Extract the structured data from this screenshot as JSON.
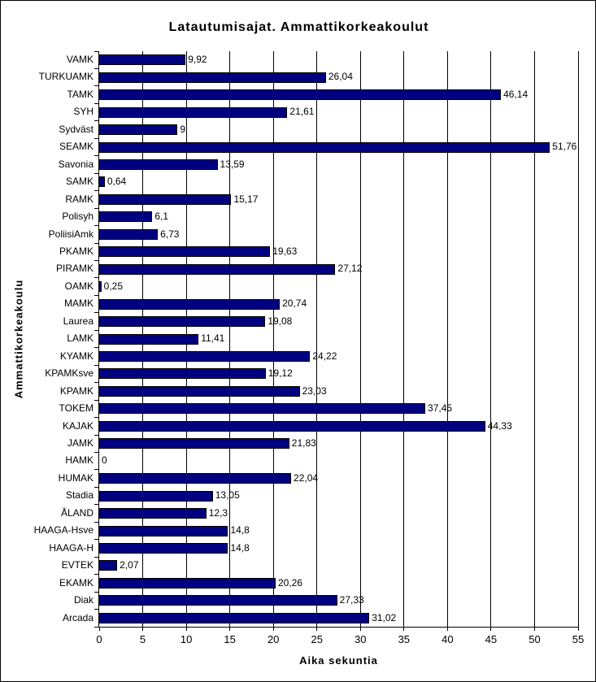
{
  "chart_data": {
    "type": "bar",
    "orientation": "horizontal",
    "title": "Latautumisajat. Ammattikorkeakoulut",
    "xlabel": "Aika sekuntia",
    "ylabel": "Ammattikorkeakoulu",
    "xlim": [
      0,
      55
    ],
    "xticks": [
      0,
      5,
      10,
      15,
      20,
      25,
      30,
      35,
      40,
      45,
      50,
      55
    ],
    "grid": true,
    "legend": false,
    "bar_color": "#000080",
    "axis_color": "#000000",
    "background_color": "#ffffff",
    "categories": [
      "VAMK",
      "TURKUAMK",
      "TAMK",
      "SYH",
      "Sydväst",
      "SEAMK",
      "Savonia",
      "SAMK",
      "RAMK",
      "Polisyh",
      "PoliisiAmk",
      "PKAMK",
      "PIRAMK",
      "OAMK",
      "MAMK",
      "Laurea",
      "LAMK",
      "KYAMK",
      "KPAMKsve",
      "KPAMK",
      "TOKEM",
      "KAJAK",
      "JAMK",
      "HAMK",
      "HUMAK",
      "Stadia",
      "ÅLAND",
      "HAAGA-Hsve",
      "HAAGA-H",
      "EVTEK",
      "EKAMK",
      "Diak",
      "Arcada"
    ],
    "values": [
      9.92,
      26.04,
      46.14,
      21.61,
      9,
      51.76,
      13.59,
      0.64,
      15.17,
      6.1,
      6.73,
      19.63,
      27.12,
      0.25,
      20.74,
      19.08,
      11.41,
      24.22,
      19.12,
      23.03,
      37.45,
      44.33,
      21.83,
      0,
      22.04,
      13.05,
      12.3,
      14.8,
      14.8,
      2.07,
      20.26,
      27.33,
      31.02
    ],
    "value_labels": [
      "9,92",
      "26,04",
      "46,14",
      "21,61",
      "9",
      "51,76",
      "13,59",
      "0,64",
      "15,17",
      "6,1",
      "6,73",
      "19,63",
      "27,12",
      "0,25",
      "20,74",
      "19,08",
      "11,41",
      "24,22",
      "19,12",
      "23,03",
      "37,45",
      "44,33",
      "21,83",
      "0",
      "22,04",
      "13,05",
      "12,3",
      "14,8",
      "14,8",
      "2,07",
      "20,26",
      "27,33",
      "31,02"
    ]
  }
}
